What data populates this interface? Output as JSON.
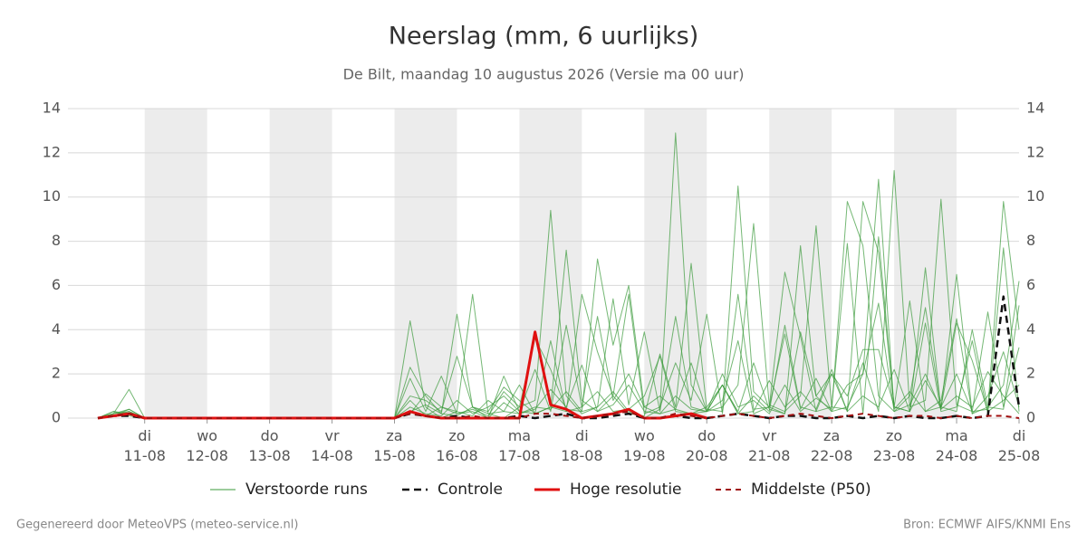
{
  "chart_data": {
    "type": "line",
    "title": "Neerslag (mm, 6 uurlijks)",
    "subtitle": "De Bilt, maandag 10 augustus 2026 (Versie ma 00 uur)",
    "footer_left": "Gegenereerd door MeteoVPS (meteo-service.nl)",
    "footer_right": "Bron: ECMWF AIFS/KNMI Ens",
    "categories": [
      null,
      null,
      null,
      "di\n11-08",
      null,
      null,
      null,
      "wo\n12-08",
      null,
      null,
      null,
      "do\n13-08",
      null,
      null,
      null,
      "vr\n14-08",
      null,
      null,
      null,
      "za\n15-08",
      null,
      null,
      null,
      "zo\n16-08",
      null,
      null,
      null,
      "ma\n17-08",
      null,
      null,
      null,
      "di\n18-08",
      null,
      null,
      null,
      "wo\n19-08",
      null,
      null,
      null,
      "do\n20-08",
      null,
      null,
      null,
      "vr\n21-08",
      null,
      null,
      null,
      "za\n22-08",
      null,
      null,
      null,
      "zo\n23-08",
      null,
      null,
      null,
      "ma\n24-08",
      null,
      null,
      null,
      "di\n25-08"
    ],
    "ylim": [
      0,
      14
    ],
    "yticks": [
      0,
      2,
      4,
      6,
      8,
      10,
      12,
      14
    ],
    "y2lim": [
      0,
      14
    ],
    "y2ticks": [
      0,
      2,
      4,
      6,
      8,
      10,
      12,
      14
    ],
    "grid": true,
    "legend": "bottom",
    "ensemble": {
      "name": "Verstoorde runs",
      "color": "#3a9a3a",
      "members": [
        [
          0,
          0.2,
          1.3,
          0,
          0,
          0,
          0,
          0,
          0,
          0,
          0,
          0,
          0,
          0,
          0,
          0,
          0,
          0,
          0,
          0,
          4.4,
          0.5,
          0,
          0.3,
          5.6,
          0.2,
          0,
          0.5,
          0.8,
          9.4,
          1.0,
          0.2,
          0.5,
          1.2,
          0.3,
          0,
          0.4,
          12.9,
          1.5,
          0.3,
          2.0,
          0.5,
          0.8,
          0.2,
          1.5,
          0.3,
          0.9,
          0.4,
          9.8,
          7.8,
          1.0,
          0.3,
          0.6,
          2.0,
          0.4,
          1.0,
          0.5,
          2.1,
          1.0,
          0.2
        ],
        [
          0,
          0.1,
          0.3,
          0,
          0,
          0,
          0,
          0,
          0,
          0,
          0,
          0,
          0,
          0,
          0,
          0,
          0,
          0,
          0,
          0,
          2.3,
          1.0,
          0.2,
          4.7,
          0.5,
          0,
          1.9,
          0.3,
          0.2,
          0.5,
          7.6,
          0.8,
          0.3,
          1.0,
          0.2,
          0.1,
          2.9,
          0.5,
          7.0,
          0.4,
          0.3,
          10.5,
          1.2,
          0.5,
          0.2,
          3.9,
          1.0,
          0.3,
          1.5,
          2.0,
          10.8,
          0.4,
          1.2,
          0.3,
          0.8,
          4.5,
          0.2,
          1.0,
          3.0,
          0.5
        ],
        [
          0,
          0.3,
          0.2,
          0,
          0,
          0,
          0,
          0,
          0,
          0,
          0,
          0,
          0,
          0,
          0,
          0,
          0,
          0,
          0,
          0,
          1.8,
          0.3,
          1.9,
          0.2,
          0.4,
          0.1,
          1.2,
          0.5,
          3.6,
          2.2,
          0.4,
          0.3,
          7.2,
          3.3,
          6.0,
          0.5,
          1.0,
          0.4,
          0.2,
          0.3,
          0.5,
          1.5,
          8.8,
          0.6,
          0.3,
          1.0,
          8.7,
          0.5,
          0.4,
          2.5,
          0.3,
          11.2,
          0.5,
          0.8,
          9.9,
          0.6,
          0.3,
          0.4,
          9.8,
          4.0
        ],
        [
          0,
          0.2,
          0.4,
          0,
          0,
          0,
          0,
          0,
          0,
          0,
          0,
          0,
          0,
          0,
          0,
          0,
          0,
          0,
          0,
          0,
          1.0,
          0.8,
          0.3,
          2.8,
          0.5,
          0.2,
          0.3,
          1.5,
          0.2,
          0.5,
          0.3,
          5.6,
          3.0,
          1.0,
          5.6,
          0.2,
          0.5,
          2.5,
          0.8,
          4.7,
          0.2,
          5.6,
          0.4,
          0.5,
          6.6,
          3.7,
          0.3,
          0.5,
          7.9,
          0.2,
          8.2,
          0.5,
          0.3,
          6.8,
          0.4,
          6.5,
          0.2,
          0.5,
          1.5,
          6.2
        ],
        [
          0,
          0.1,
          0.2,
          0,
          0,
          0,
          0,
          0,
          0,
          0,
          0,
          0,
          0,
          0,
          0,
          0,
          0,
          0,
          0,
          0,
          0.5,
          0.2,
          0.1,
          0.8,
          0.2,
          0.5,
          1.0,
          0.3,
          2.2,
          0.3,
          4.2,
          0.5,
          4.6,
          0.8,
          2.0,
          0.5,
          0.2,
          1.0,
          0.4,
          0.3,
          1.5,
          0.3,
          2.5,
          0.4,
          0.2,
          7.8,
          1.0,
          2.0,
          0.3,
          9.8,
          7.5,
          0.5,
          5.3,
          0.3,
          0.5,
          4.3,
          2.6,
          0.3,
          0.8,
          1.5
        ],
        [
          0,
          0.2,
          0.3,
          0,
          0,
          0,
          0,
          0,
          0,
          0,
          0,
          0,
          0,
          0,
          0,
          0,
          0,
          0,
          0,
          0,
          0.2,
          1.1,
          0.5,
          0.3,
          0.1,
          0.8,
          0.3,
          0.2,
          0.5,
          0.4,
          1.2,
          0.3,
          0.5,
          5.4,
          0.6,
          3.9,
          0.3,
          4.6,
          0.5,
          0.3,
          1.5,
          0.2,
          1.0,
          0.3,
          4.2,
          0.5,
          0.3,
          2.0,
          1.0,
          3.1,
          3.1,
          0.5,
          0.3,
          4.3,
          0.3,
          0.5,
          3.5,
          0.2,
          7.7,
          0.3
        ],
        [
          0,
          0.3,
          0.1,
          0,
          0,
          0,
          0,
          0,
          0,
          0,
          0,
          0,
          0,
          0,
          0,
          0,
          0,
          0,
          0,
          0,
          0.8,
          0.1,
          0.5,
          0.2,
          0.3,
          0,
          0.7,
          0.2,
          0.4,
          1.3,
          0.5,
          2.4,
          0.3,
          0.6,
          1.5,
          0.3,
          0.2,
          0.4,
          2.5,
          0.3,
          0.8,
          3.5,
          0.2,
          0.5,
          3.8,
          0.4,
          1.8,
          0.3,
          0.5,
          2.0,
          5.2,
          0.3,
          1.0,
          5.0,
          0.5,
          0.3,
          4.0,
          0.5,
          0.4,
          5.1
        ],
        [
          0,
          0.1,
          0.4,
          0,
          0,
          0,
          0,
          0,
          0,
          0,
          0,
          0,
          0,
          0,
          0,
          0,
          0,
          0,
          0,
          0,
          0.3,
          0.6,
          0.2,
          0.1,
          0.5,
          0.3,
          1.4,
          0.8,
          0.2,
          3.5,
          0.3,
          0.5,
          1.2,
          0.3,
          0.4,
          1.0,
          2.8,
          0.3,
          0.2,
          0.5,
          1.5,
          0.2,
          0.3,
          1.7,
          0.5,
          1.2,
          0.4,
          2.2,
          0.3,
          1.0,
          0.5,
          2.2,
          0.3,
          1.7,
          0.5,
          2.0,
          0.3,
          4.8,
          0.5,
          3.2
        ]
      ]
    },
    "series": [
      {
        "name": "Controle",
        "color": "#111111",
        "dash": "8,5",
        "width": 2.5,
        "values": [
          0,
          0.1,
          0.1,
          0,
          0,
          0,
          0,
          0,
          0,
          0,
          0,
          0,
          0,
          0,
          0,
          0,
          0,
          0,
          0,
          0,
          0.2,
          0.1,
          0,
          0.1,
          0,
          0,
          0,
          0.1,
          0,
          0.1,
          0.2,
          0,
          0,
          0.1,
          0.2,
          0,
          0,
          0.1,
          0,
          0,
          0.1,
          0.2,
          0.1,
          0,
          0.1,
          0.1,
          0,
          0,
          0.1,
          0,
          0.1,
          0,
          0.1,
          0,
          0,
          0.1,
          0,
          0.1,
          5.5,
          0.5
        ]
      },
      {
        "name": "Hoge resolutie",
        "color": "#e01010",
        "width": 3,
        "values": [
          0,
          0.1,
          0.2,
          0,
          0,
          0,
          0,
          0,
          0,
          0,
          0,
          0,
          0,
          0,
          0,
          0,
          0,
          0,
          0,
          0,
          0.3,
          0.1,
          0,
          0,
          0,
          0,
          0,
          0,
          3.9,
          0.6,
          0.4,
          0,
          0.1,
          0.2,
          0.4,
          0,
          0,
          0.1,
          0.2,
          0,
          null,
          null,
          null,
          null,
          null,
          null,
          null,
          null,
          null,
          null,
          null,
          null,
          null,
          null,
          null,
          null,
          null,
          null,
          null,
          null
        ]
      },
      {
        "name": "Middelste (P50)",
        "color": "#a01010",
        "dash": "6,5",
        "width": 2,
        "values": [
          0,
          0.1,
          0.2,
          0,
          0,
          0,
          0,
          0,
          0,
          0,
          0,
          0,
          0,
          0,
          0,
          0,
          0,
          0,
          0,
          0,
          0.2,
          0.1,
          0,
          0,
          0.1,
          0,
          0,
          0,
          0.2,
          0.2,
          0.1,
          0,
          0.1,
          0.2,
          0.3,
          0,
          0,
          0.2,
          0.1,
          0,
          0.1,
          0.2,
          0.1,
          0,
          0.1,
          0.2,
          0.1,
          0,
          0.1,
          0.2,
          0.1,
          0,
          0.1,
          0.1,
          0,
          0.1,
          0,
          0.1,
          0.1,
          0
        ]
      }
    ]
  }
}
